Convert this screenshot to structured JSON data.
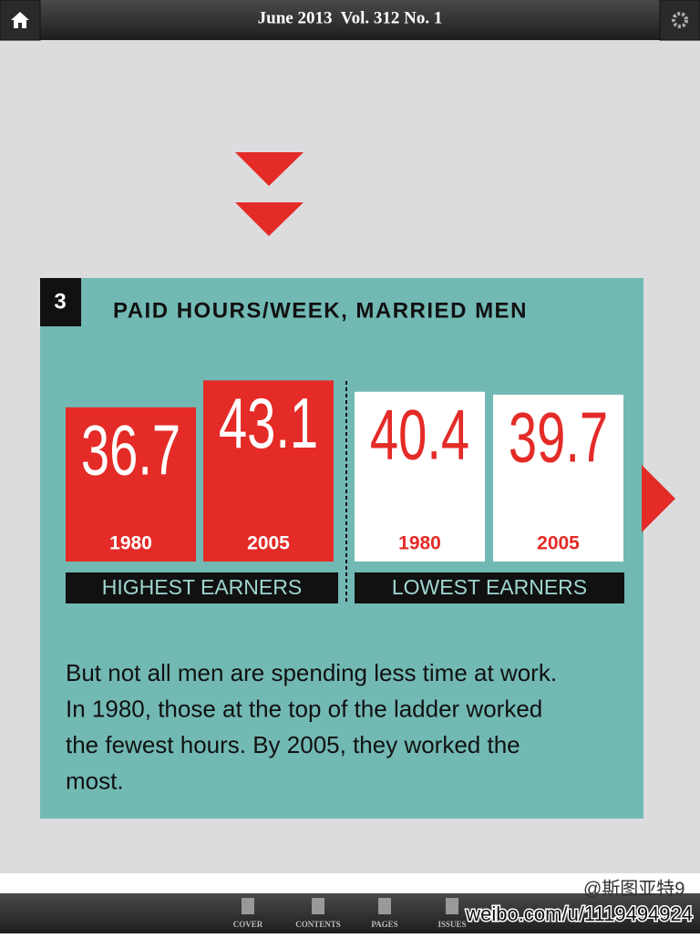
{
  "header": {
    "title": "June 2013  Vol. 312 No. 1"
  },
  "card": {
    "number": "3",
    "title": "PAID HOURS/WEEK, MARRIED MEN",
    "groups": [
      {
        "name": "HIGHEST EARNERS",
        "bars": [
          {
            "year": "1980",
            "value": 36.7
          },
          {
            "year": "2005",
            "value": 43.1
          }
        ]
      },
      {
        "name": "LOWEST EARNERS",
        "bars": [
          {
            "year": "1980",
            "value": 40.4
          },
          {
            "year": "2005",
            "value": 39.7
          }
        ]
      }
    ],
    "body": [
      "But not all men are spending less time at work.",
      "In 1980, those at the top of the ladder worked",
      "the fewest hours. By 2005, they worked the",
      "most."
    ]
  },
  "tabs": [
    "COVER",
    "CONTENTS",
    "PAGES",
    "ISSUES"
  ],
  "watermark": {
    "handle": "@斯图亚特9",
    "url": "weibo.com/u/1119494924"
  }
}
